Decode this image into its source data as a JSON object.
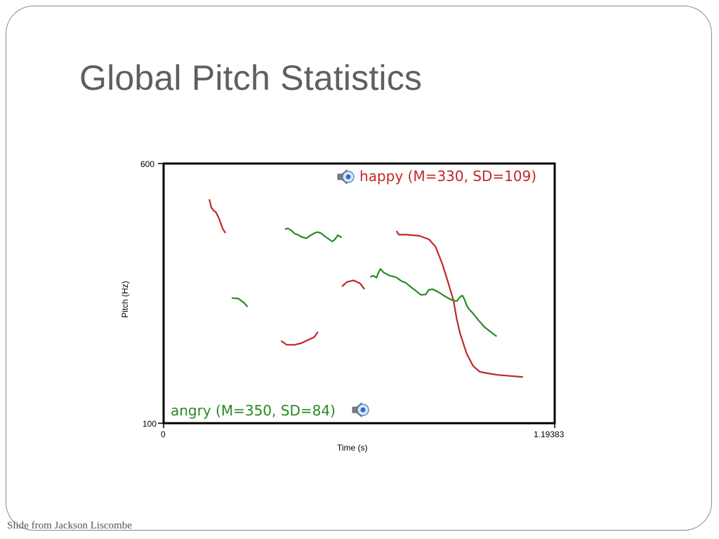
{
  "slide": {
    "title": "Global Pitch Statistics",
    "footer": "Slide from Jackson Liscombe"
  },
  "chart_data": {
    "type": "line",
    "xlabel": "Time (s)",
    "ylabel": "Pitch (Hz)",
    "xlim": [
      0,
      1.19383
    ],
    "ylim": [
      100,
      600
    ],
    "x_tick_labels": [
      "0",
      "1.19383"
    ],
    "y_tick_labels": [
      "600",
      "100"
    ],
    "grid": false,
    "colors": {
      "happy": "#c0282a",
      "angry": "#2a8a22"
    },
    "annotations": {
      "happy": {
        "text": "happy (M=330, SD=109)",
        "placement": "top-right",
        "icon": "speaker-icon"
      },
      "angry": {
        "text": "angry (M=350, SD=84)",
        "placement": "bottom-left",
        "icon": "speaker-icon"
      }
    },
    "series": [
      {
        "color": "#c0282a",
        "segments": [
          [
            [
              0.14,
              530
            ],
            [
              0.146,
              515
            ],
            [
              0.152,
              510
            ],
            [
              0.16,
              506
            ],
            [
              0.17,
              493
            ],
            [
              0.18,
              475
            ],
            [
              0.188,
              467
            ]
          ],
          [
            [
              0.36,
              258
            ],
            [
              0.376,
              251
            ],
            [
              0.4,
              251
            ],
            [
              0.42,
              254
            ],
            [
              0.44,
              260
            ],
            [
              0.46,
              266
            ],
            [
              0.47,
              275
            ]
          ],
          [
            [
              0.546,
              364
            ],
            [
              0.56,
              372
            ],
            [
              0.58,
              375
            ],
            [
              0.6,
              369
            ],
            [
              0.612,
              359
            ]
          ],
          [
            [
              0.712,
              469
            ],
            [
              0.718,
              463
            ],
            [
              0.74,
              463
            ],
            [
              0.78,
              461
            ],
            [
              0.81,
              454
            ],
            [
              0.83,
              440
            ],
            [
              0.85,
              408
            ],
            [
              0.868,
              372
            ],
            [
              0.885,
              336
            ],
            [
              0.895,
              300
            ],
            [
              0.905,
              273
            ],
            [
              0.925,
              234
            ],
            [
              0.945,
              210
            ],
            [
              0.965,
              199
            ],
            [
              0.99,
              196
            ],
            [
              1.02,
              193
            ],
            [
              1.095,
              189
            ]
          ]
        ]
      },
      {
        "color": "#2a8a22",
        "segments": [
          [
            [
              0.21,
              341
            ],
            [
              0.228,
              340
            ],
            [
              0.245,
              332
            ],
            [
              0.255,
              325
            ]
          ],
          [
            [
              0.372,
              474
            ],
            [
              0.38,
              475
            ],
            [
              0.392,
              470
            ],
            [
              0.4,
              465
            ],
            [
              0.41,
              463
            ],
            [
              0.42,
              459
            ],
            [
              0.435,
              456
            ],
            [
              0.445,
              460
            ],
            [
              0.46,
              466
            ],
            [
              0.47,
              468
            ],
            [
              0.48,
              466
            ],
            [
              0.49,
              461
            ],
            [
              0.505,
              454
            ],
            [
              0.515,
              450
            ],
            [
              0.522,
              453
            ],
            [
              0.532,
              462
            ],
            [
              0.542,
              458
            ]
          ],
          [
            [
              0.633,
              382
            ],
            [
              0.64,
              384
            ],
            [
              0.65,
              380
            ],
            [
              0.655,
              389
            ],
            [
              0.662,
              397
            ],
            [
              0.672,
              390
            ],
            [
              0.69,
              384
            ],
            [
              0.71,
              381
            ],
            [
              0.725,
              374
            ],
            [
              0.74,
              370
            ],
            [
              0.755,
              362
            ],
            [
              0.77,
              355
            ],
            [
              0.785,
              347
            ],
            [
              0.8,
              348
            ],
            [
              0.81,
              357
            ],
            [
              0.822,
              358
            ],
            [
              0.84,
              352
            ],
            [
              0.86,
              344
            ],
            [
              0.88,
              337
            ],
            [
              0.895,
              335
            ],
            [
              0.905,
              343
            ],
            [
              0.912,
              346
            ],
            [
              0.918,
              339
            ],
            [
              0.925,
              327
            ],
            [
              0.932,
              320
            ],
            [
              0.945,
              311
            ],
            [
              0.96,
              299
            ],
            [
              0.98,
              285
            ],
            [
              1.0,
              275
            ],
            [
              1.015,
              268
            ]
          ]
        ]
      }
    ]
  }
}
